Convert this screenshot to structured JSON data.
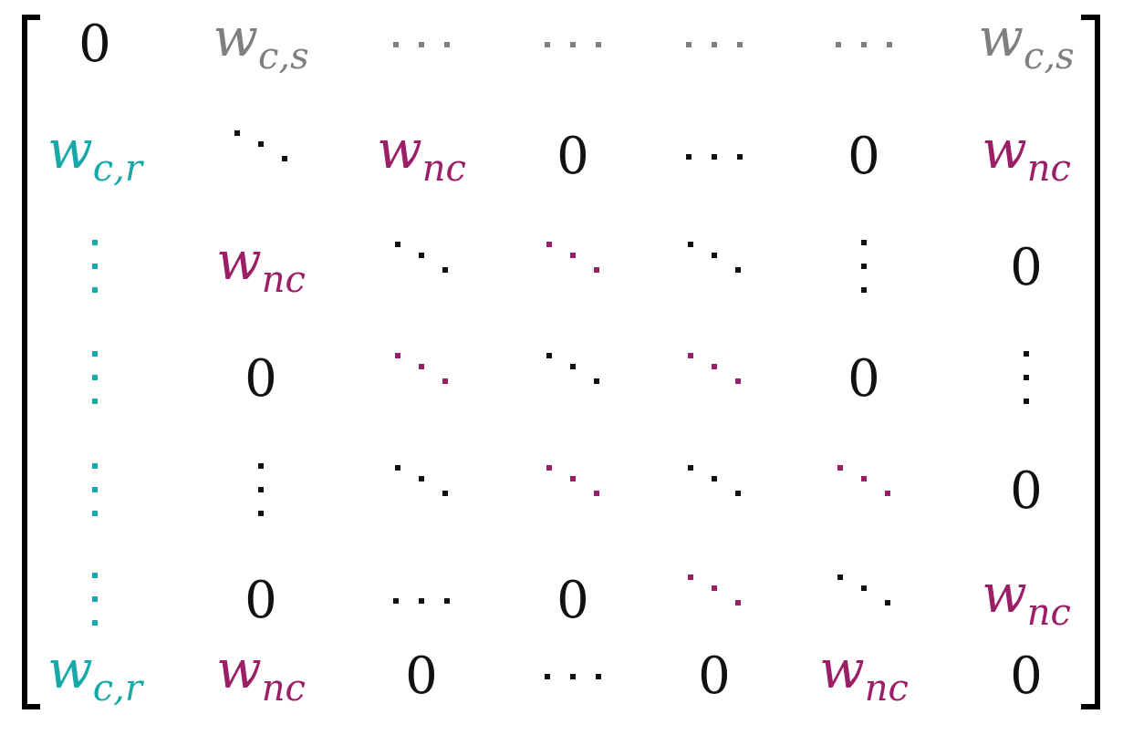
{
  "colors": {
    "black": "#111111",
    "gray": "#7f7f7f",
    "teal": "#17a8a9",
    "magenta": "#9b1f67"
  },
  "matrix": {
    "cells": [
      [
        {
          "kind": "text",
          "value": "0",
          "color": "black"
        },
        {
          "kind": "var",
          "base": "w",
          "sub": "c,s",
          "color": "gray"
        },
        {
          "kind": "hdots",
          "color": "gray"
        },
        {
          "kind": "hdots",
          "color": "gray"
        },
        {
          "kind": "hdots",
          "color": "gray"
        },
        {
          "kind": "hdots",
          "color": "gray"
        },
        {
          "kind": "var",
          "base": "w",
          "sub": "c,s",
          "color": "gray"
        }
      ],
      [
        {
          "kind": "var",
          "base": "w",
          "sub": "c,r",
          "color": "teal"
        },
        {
          "kind": "ddots",
          "color": "black"
        },
        {
          "kind": "var",
          "base": "w",
          "sub": "nc",
          "color": "magenta"
        },
        {
          "kind": "text",
          "value": "0",
          "color": "black"
        },
        {
          "kind": "hdots",
          "color": "black"
        },
        {
          "kind": "text",
          "value": "0",
          "color": "black"
        },
        {
          "kind": "var",
          "base": "w",
          "sub": "nc",
          "color": "magenta"
        }
      ],
      [
        {
          "kind": "vdots",
          "color": "teal"
        },
        {
          "kind": "var",
          "base": "w",
          "sub": "nc",
          "color": "magenta"
        },
        {
          "kind": "ddots",
          "color": "black"
        },
        {
          "kind": "ddots",
          "color": "magenta"
        },
        {
          "kind": "ddots",
          "color": "black"
        },
        {
          "kind": "vdots",
          "color": "black"
        },
        {
          "kind": "text",
          "value": "0",
          "color": "black"
        }
      ],
      [
        {
          "kind": "vdots",
          "color": "teal"
        },
        {
          "kind": "text",
          "value": "0",
          "color": "black"
        },
        {
          "kind": "ddots",
          "color": "magenta"
        },
        {
          "kind": "ddots",
          "color": "black"
        },
        {
          "kind": "ddots",
          "color": "magenta"
        },
        {
          "kind": "text",
          "value": "0",
          "color": "black"
        },
        {
          "kind": "vdots",
          "color": "black"
        }
      ],
      [
        {
          "kind": "vdots",
          "color": "teal"
        },
        {
          "kind": "vdots",
          "color": "black"
        },
        {
          "kind": "ddots",
          "color": "black"
        },
        {
          "kind": "ddots",
          "color": "magenta"
        },
        {
          "kind": "ddots",
          "color": "black"
        },
        {
          "kind": "ddots",
          "color": "magenta"
        },
        {
          "kind": "text",
          "value": "0",
          "color": "black"
        }
      ],
      [
        {
          "kind": "vdots",
          "color": "teal"
        },
        {
          "kind": "text",
          "value": "0",
          "color": "black"
        },
        {
          "kind": "hdots",
          "color": "black"
        },
        {
          "kind": "text",
          "value": "0",
          "color": "black"
        },
        {
          "kind": "ddots",
          "color": "magenta"
        },
        {
          "kind": "ddots",
          "color": "black"
        },
        {
          "kind": "var",
          "base": "w",
          "sub": "nc",
          "color": "magenta"
        }
      ],
      [
        {
          "kind": "var",
          "base": "w",
          "sub": "c,r",
          "color": "teal"
        },
        {
          "kind": "var",
          "base": "w",
          "sub": "nc",
          "color": "magenta"
        },
        {
          "kind": "text",
          "value": "0",
          "color": "black"
        },
        {
          "kind": "hdots",
          "color": "black"
        },
        {
          "kind": "text",
          "value": "0",
          "color": "black"
        },
        {
          "kind": "var",
          "base": "w",
          "sub": "nc",
          "color": "magenta"
        },
        {
          "kind": "text",
          "value": "0",
          "color": "black"
        }
      ]
    ]
  }
}
